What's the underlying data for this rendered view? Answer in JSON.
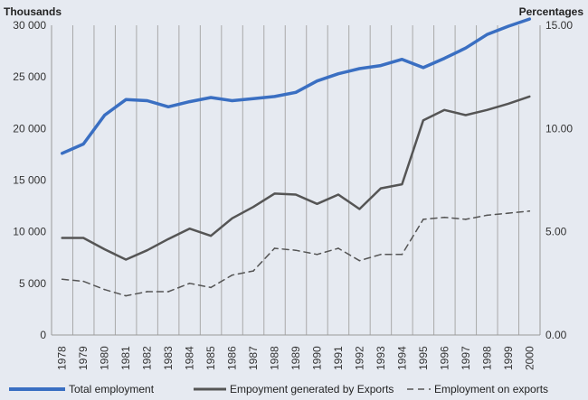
{
  "chart_data": {
    "type": "line",
    "title": "",
    "left_axis": {
      "unit": "Thousands",
      "ticks": [
        "0",
        "5 000",
        "10 000",
        "15 000",
        "20 000",
        "25 000",
        "30 000"
      ],
      "ylim": [
        0,
        30000
      ]
    },
    "right_axis": {
      "unit": "Percentages",
      "ticks": [
        "0.00",
        "5.00",
        "10.00",
        "15.00"
      ],
      "ylim": [
        0,
        15
      ]
    },
    "x": [
      "1978",
      "1979",
      "1980",
      "1981",
      "1982",
      "1983",
      "1984",
      "1985",
      "1986",
      "1987",
      "1988",
      "1989",
      "1990",
      "1991",
      "1992",
      "1993",
      "1994",
      "1995",
      "1996",
      "1997",
      "1998",
      "1999",
      "2000"
    ],
    "grid": "vertical",
    "legend_position": "bottom",
    "series": [
      {
        "name": "Total employment",
        "axis": "left",
        "color": "#3a6fc2",
        "style": "solid",
        "width": 3.5,
        "values": [
          17600,
          18500,
          21300,
          22800,
          22700,
          22100,
          22600,
          23000,
          22700,
          22900,
          23100,
          23500,
          24600,
          25300,
          25800,
          26100,
          26700,
          25900,
          26800,
          27800,
          29100,
          29900,
          30600
        ]
      },
      {
        "name": "Empoyment generated by Exports",
        "axis": "left",
        "color": "#555555",
        "style": "solid",
        "width": 2.5,
        "values": [
          9400,
          9400,
          8300,
          7300,
          8200,
          9300,
          10300,
          9600,
          11300,
          12400,
          13700,
          13600,
          12700,
          13600,
          12200,
          14200,
          14600,
          20800,
          21800,
          21300,
          21800,
          22400,
          23100
        ]
      },
      {
        "name": "Employment on exports",
        "axis": "right",
        "color": "#555555",
        "style": "dashed",
        "width": 1.5,
        "values": [
          2.7,
          2.6,
          2.2,
          1.9,
          2.1,
          2.1,
          2.5,
          2.3,
          2.9,
          3.1,
          4.2,
          4.1,
          3.9,
          4.2,
          3.6,
          3.9,
          3.9,
          5.6,
          5.7,
          5.6,
          5.8,
          5.9,
          6.0
        ]
      }
    ]
  }
}
